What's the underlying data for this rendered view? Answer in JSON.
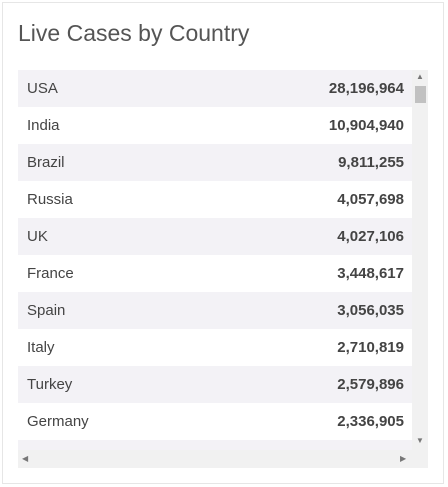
{
  "header": {
    "title": "Live Cases by Country"
  },
  "table": {
    "rows": [
      [
        "USA",
        "28,196,964"
      ],
      [
        "India",
        "10,904,940"
      ],
      [
        "Brazil",
        "9,811,255"
      ],
      [
        "Russia",
        "4,057,698"
      ],
      [
        "UK",
        "4,027,106"
      ],
      [
        "France",
        "3,448,617"
      ],
      [
        "Spain",
        "3,056,035"
      ],
      [
        "Italy",
        "2,710,819"
      ],
      [
        "Turkey",
        "2,579,896"
      ],
      [
        "Germany",
        "2,336,905"
      ]
    ]
  }
}
